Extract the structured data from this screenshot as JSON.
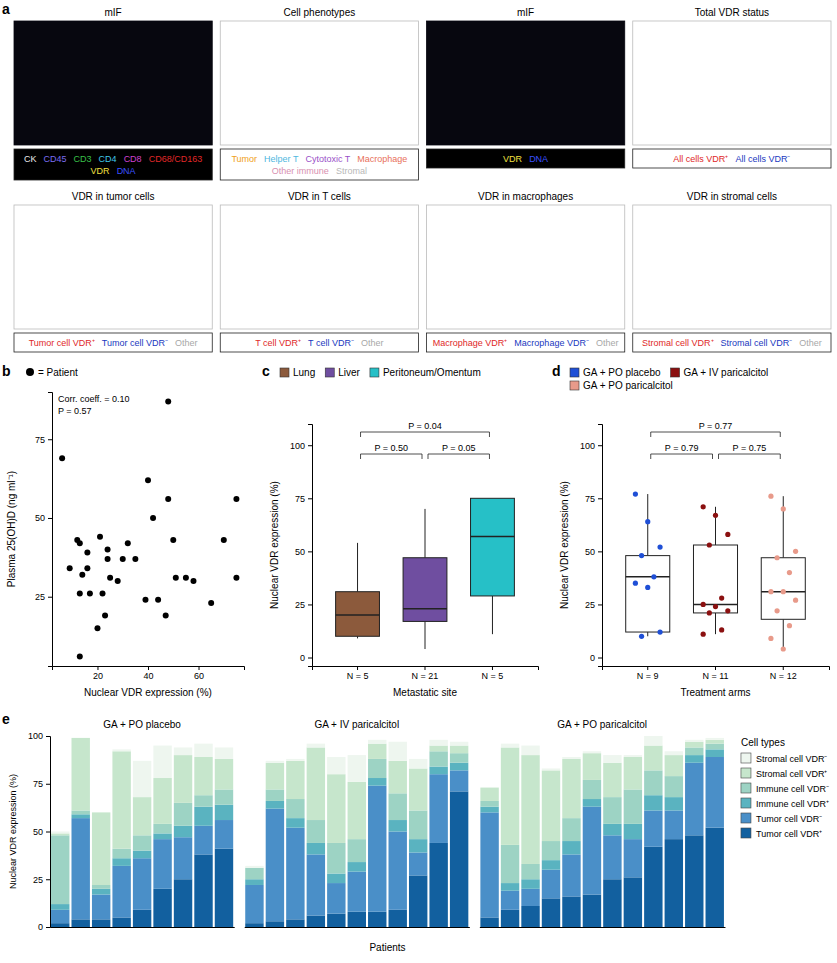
{
  "chart_data": [
    {
      "type": "image_grid",
      "panel": "a",
      "tiles": [
        {
          "title": "mIF",
          "type": "image",
          "series": [
            {
              "name": "CK",
              "color": "#e8e8e8"
            },
            {
              "name": "CD45",
              "color": "#7a6cf0"
            },
            {
              "name": "CD3",
              "color": "#38c048"
            },
            {
              "name": "CD4",
              "color": "#40c8e8"
            },
            {
              "name": "CD8",
              "color": "#d040d0"
            },
            {
              "name": "CD68/CD163",
              "color": "#e02828"
            },
            {
              "name": "VDR",
              "color": "#f0e040"
            },
            {
              "name": "DNA",
              "color": "#3a50ff"
            }
          ]
        },
        {
          "title": "Cell phenotypes",
          "type": "map",
          "series": [
            {
              "name": "Tumor",
              "color": "#f0a020"
            },
            {
              "name": "Helper T",
              "color": "#4fb8e0"
            },
            {
              "name": "Cytotoxic T",
              "color": "#9a50c8"
            },
            {
              "name": "Macrophage",
              "color": "#e8705a"
            },
            {
              "name": "Other immune",
              "color": "#d890b0"
            },
            {
              "name": "Stromal",
              "color": "#b8b8b8"
            }
          ]
        },
        {
          "title": "mIF",
          "type": "image",
          "series": [
            {
              "name": "VDR",
              "color": "#f0e040"
            },
            {
              "name": "DNA",
              "color": "#3a50ff"
            }
          ]
        },
        {
          "title": "Total VDR status",
          "type": "map",
          "series": [
            {
              "name": "All cells VDR⁺",
              "color": "#e02828"
            },
            {
              "name": "All cells VDR⁻",
              "color": "#2038c0"
            }
          ]
        },
        {
          "title": "VDR in tumor cells",
          "type": "map",
          "series": [
            {
              "name": "Tumor cell VDR⁺",
              "color": "#e02828"
            },
            {
              "name": "Tumor cell VDR⁻",
              "color": "#2038c0"
            },
            {
              "name": "Other",
              "color": "#a8a8a8"
            }
          ]
        },
        {
          "title": "VDR in T cells",
          "type": "map",
          "series": [
            {
              "name": "T cell VDR⁺",
              "color": "#e02828"
            },
            {
              "name": "T cell VDR⁻",
              "color": "#2038c0"
            },
            {
              "name": "Other",
              "color": "#a8a8a8"
            }
          ]
        },
        {
          "title": "VDR in macrophages",
          "type": "map",
          "series": [
            {
              "name": "Macrophage VDR⁺",
              "color": "#e02828"
            },
            {
              "name": "Macrophage VDR⁻",
              "color": "#2038c0"
            },
            {
              "name": "Other",
              "color": "#a8a8a8"
            }
          ]
        },
        {
          "title": "VDR in stromal cells",
          "type": "map",
          "series": [
            {
              "name": "Stromal cell VDR⁺",
              "color": "#e02828"
            },
            {
              "name": "Stromal cell VDR⁻",
              "color": "#2038c0"
            },
            {
              "name": "Other",
              "color": "#a8a8a8"
            }
          ]
        }
      ]
    },
    {
      "type": "scatter",
      "panel": "b",
      "x_label": "Nuclear VDR expression (%)",
      "y_label": "Plasma 25(OH)D (ng ml⁻¹)",
      "xlim": [
        2,
        78
      ],
      "xticks": [
        20,
        40,
        60
      ],
      "ylim": [
        3,
        90
      ],
      "yticks": [
        25,
        50,
        75
      ],
      "legend": "top-left",
      "annotations": [
        "Corr. coeff. = 0.10",
        "P = 0.57"
      ],
      "series": [
        {
          "name": "= Patient",
          "color": "#000000",
          "marker": "circle",
          "x": [
            6,
            9,
            12,
            13,
            13,
            14,
            13,
            16,
            17,
            16,
            20,
            21,
            22,
            23,
            24,
            24,
            25,
            28,
            30,
            32,
            35,
            39,
            40,
            42,
            44,
            47,
            48,
            48,
            50,
            51,
            55,
            58,
            65,
            70,
            75,
            75
          ],
          "values": [
            69,
            34,
            43,
            42,
            26,
            32,
            6,
            39,
            26,
            34,
            15,
            44,
            26,
            19,
            40,
            37,
            31,
            30,
            37,
            42,
            37,
            24,
            62,
            50,
            24,
            19,
            56,
            87,
            43,
            31,
            31,
            30,
            23,
            43,
            31,
            56
          ]
        }
      ]
    },
    {
      "type": "box",
      "panel": "c",
      "x_label": "Metastatic site",
      "y_label": "Nuclear VDR expression (%)",
      "categories": [
        "N = 5",
        "N = 21",
        "N = 5"
      ],
      "ylim": [
        -4,
        110
      ],
      "yticks": [
        0,
        25,
        50,
        75,
        100
      ],
      "legend": "top",
      "series": [
        {
          "name": "Lung",
          "color": "#8c5a3c",
          "min": 9,
          "q1": 10,
          "median": 20,
          "q3": 31,
          "max": 54
        },
        {
          "name": "Liver",
          "color": "#6f4ea0",
          "min": 4,
          "q1": 17,
          "median": 23,
          "q3": 47,
          "max": 70
        },
        {
          "name": "Peritoneum/Omentum",
          "color": "#26c0c7",
          "min": 11,
          "q1": 29,
          "median": 57,
          "q3": 75,
          "max": 75
        }
      ],
      "comparisons": [
        {
          "from": "Lung",
          "to": "Peritoneum/Omentum",
          "label": "P = 0.04"
        },
        {
          "from": "Lung",
          "to": "Liver",
          "label": "P = 0.50"
        },
        {
          "from": "Liver",
          "to": "Peritoneum/Omentum",
          "label": "P = 0.05"
        }
      ]
    },
    {
      "type": "box",
      "panel": "d",
      "x_label": "Treatment arms",
      "y_label": "Nuclear VDR expression (%)",
      "categories": [
        "N = 9",
        "N = 11",
        "N = 12"
      ],
      "ylim": [
        -4,
        110
      ],
      "yticks": [
        0,
        25,
        50,
        75,
        100
      ],
      "legend": "top",
      "series": [
        {
          "name": "GA + PO placebo",
          "color": "#1f4fd6",
          "min": 10,
          "q1": 12,
          "median": 38,
          "q3": 48,
          "max": 77,
          "points": [
            77,
            64,
            52,
            48,
            38,
            35,
            33,
            12,
            10
          ]
        },
        {
          "name": "GA + IV paricalcitol",
          "color": "#8b1010",
          "min": 11,
          "q1": 21,
          "median": 25,
          "q3": 53,
          "max": 71,
          "points": [
            71,
            67,
            58,
            53,
            28,
            25,
            24,
            22,
            21,
            13,
            11
          ]
        },
        {
          "name": "GA + PO paricalcitol",
          "color": "#e89a8a",
          "min": 4,
          "q1": 18,
          "median": 31,
          "q3": 47,
          "max": 76,
          "points": [
            76,
            70,
            50,
            47,
            40,
            31,
            31,
            27,
            22,
            15,
            9,
            4
          ]
        }
      ],
      "comparisons": [
        {
          "from": "GA + PO placebo",
          "to": "GA + PO paricalcitol",
          "label": "P = 0.77"
        },
        {
          "from": "GA + PO placebo",
          "to": "GA + IV paricalcitol",
          "label": "P = 0.79"
        },
        {
          "from": "GA + IV paricalcitol",
          "to": "GA + PO paricalcitol",
          "label": "P = 0.75"
        }
      ]
    },
    {
      "type": "bar",
      "panel": "e",
      "stacked": true,
      "x_label": "Patients",
      "y_label": "Nuclear VDR expression (%)",
      "ylim": [
        0,
        100
      ],
      "yticks": [
        0,
        25,
        50,
        75,
        100
      ],
      "legend": "right",
      "legend_title": "Cell types",
      "series": [
        {
          "name": "Stromal cell VDR⁻",
          "color": "#eef6ef"
        },
        {
          "name": "Stromal cell VDR⁺",
          "color": "#c6e6cc"
        },
        {
          "name": "Immune cell VDR⁻",
          "color": "#9dd3c4"
        },
        {
          "name": "Immune cell VDR⁺",
          "color": "#5ab3c0"
        },
        {
          "name": "Tumor cell VDR⁻",
          "color": "#4a8fc8"
        },
        {
          "name": "Tumor cell VDR⁺",
          "color": "#12609f"
        }
      ],
      "groups": [
        {
          "title": "GA + PO placebo",
          "categories": [
            null,
            null,
            null,
            null,
            null,
            null,
            null,
            null,
            null
          ],
          "series": [
            {
              "values": [
                1,
                0,
                0,
                1,
                19,
                17,
                4,
                7,
                6
              ]
            },
            {
              "values": [
                1,
                38,
                38,
                51,
                20,
                24,
                25,
                20,
                16
              ]
            },
            {
              "values": [
                36,
                2,
                2,
                5,
                8,
                5,
                12,
                6,
                8
              ]
            },
            {
              "values": [
                3,
                2,
                3,
                4,
                4,
                3,
                6,
                10,
                8
              ]
            },
            {
              "values": [
                7,
                53,
                13,
                27,
                27,
                26,
                22,
                15,
                15
              ]
            },
            {
              "values": [
                2,
                4,
                4,
                5,
                9,
                20,
                25,
                38,
                41
              ]
            }
          ]
        },
        {
          "title": "GA + IV paricalcitol",
          "categories": [
            null,
            null,
            null,
            null,
            null,
            null,
            null,
            null,
            null,
            null,
            null
          ],
          "series": [
            {
              "values": [
                1,
                1,
                1,
                2,
                9,
                14,
                2,
                10,
                5,
                3,
                2
              ]
            },
            {
              "values": [
                0,
                14,
                20,
                38,
                36,
                30,
                8,
                17,
                22,
                3,
                4
              ]
            },
            {
              "values": [
                6,
                6,
                10,
                12,
                16,
                12,
                10,
                14,
                15,
                8,
                5
              ]
            },
            {
              "values": [
                3,
                4,
                5,
                6,
                5,
                5,
                4,
                6,
                7,
                4,
                4
              ]
            },
            {
              "values": [
                20,
                59,
                48,
                32,
                16,
                21,
                66,
                41,
                12,
                36,
                11
              ]
            },
            {
              "values": [
                2,
                3,
                4,
                6,
                7,
                8,
                8,
                9,
                27,
                44,
                71
              ]
            }
          ]
        },
        {
          "title": "GA + PO paricalcitol",
          "categories": [
            null,
            null,
            null,
            null,
            null,
            null,
            null,
            null,
            null,
            null,
            null,
            null
          ],
          "series": [
            {
              "values": [
                0,
                2,
                5,
                1,
                1,
                1,
                4,
                1,
                5,
                2,
                1,
                1
              ]
            },
            {
              "values": [
                7,
                51,
                57,
                37,
                31,
                14,
                18,
                17,
                13,
                11,
                3,
                2
              ]
            },
            {
              "values": [
                3,
                20,
                8,
                10,
                12,
                10,
                14,
                18,
                13,
                11,
                4,
                3
              ]
            },
            {
              "values": [
                3,
                4,
                5,
                5,
                7,
                4,
                6,
                8,
                8,
                7,
                4,
                4
              ]
            },
            {
              "values": [
                55,
                10,
                9,
                15,
                22,
                46,
                23,
                20,
                19,
                15,
                38,
                37
              ]
            },
            {
              "values": [
                5,
                9,
                11,
                15,
                16,
                17,
                25,
                26,
                42,
                46,
                48,
                52
              ]
            }
          ]
        }
      ]
    }
  ]
}
